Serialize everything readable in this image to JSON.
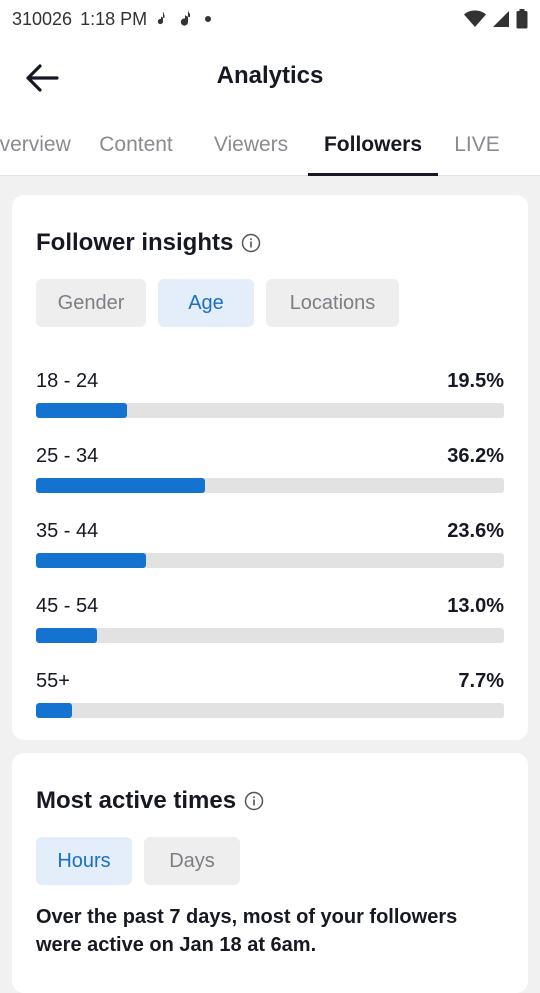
{
  "status_bar": {
    "id_text": "310026",
    "time": "1:18 PM"
  },
  "header": {
    "title": "Analytics"
  },
  "tabs": [
    {
      "label": "Overview",
      "active": false
    },
    {
      "label": "Content",
      "active": false
    },
    {
      "label": "Viewers",
      "active": false
    },
    {
      "label": "Followers",
      "active": true
    },
    {
      "label": "LIVE",
      "active": false
    }
  ],
  "follower_insights": {
    "title": "Follower insights",
    "filters": [
      {
        "label": "Gender",
        "active": false
      },
      {
        "label": "Age",
        "active": true
      },
      {
        "label": "Locations",
        "active": false
      }
    ],
    "age_groups": [
      {
        "range": "18 - 24",
        "percent_text": "19.5%",
        "percent": 19.5
      },
      {
        "range": "25 - 34",
        "percent_text": "36.2%",
        "percent": 36.2
      },
      {
        "range": "35 - 44",
        "percent_text": "23.6%",
        "percent": 23.6
      },
      {
        "range": "45 - 54",
        "percent_text": "13.0%",
        "percent": 13.0
      },
      {
        "range": "55+",
        "percent_text": "7.7%",
        "percent": 7.7
      }
    ]
  },
  "most_active": {
    "title": "Most active times",
    "filters": [
      {
        "label": "Hours",
        "active": true
      },
      {
        "label": "Days",
        "active": false
      }
    ],
    "summary": "Over the past 7 days, most of your followers were active on Jan 18 at 6am."
  },
  "colors": {
    "accent": "#1472d1",
    "chip_active_bg": "#e3eefa",
    "chip_active_text": "#1870c9",
    "track": "#e2e2e3"
  }
}
